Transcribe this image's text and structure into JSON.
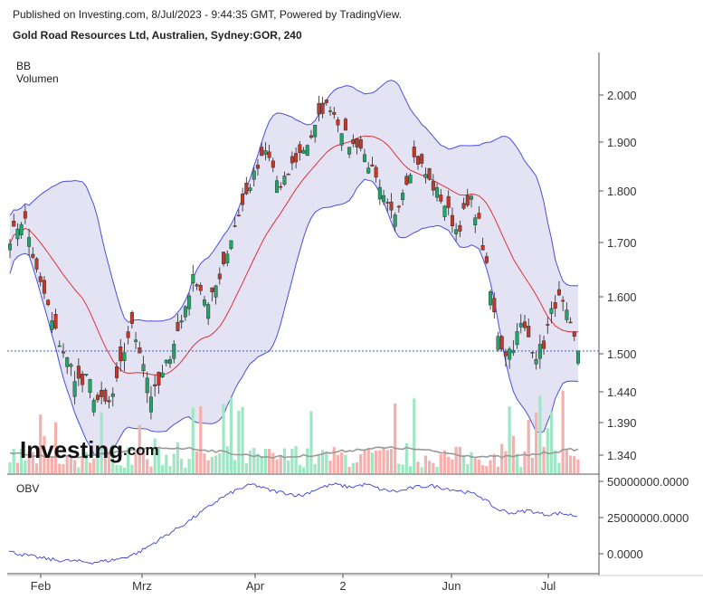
{
  "header": {
    "published": "Published on Investing.com, 8/Jul/2023 - 9:44:35 GMT, Powered by TradingView.",
    "instrument": "Gold Road Resources Ltd, Australien, Sydney:GOR, 240"
  },
  "indicators": {
    "bb": "BB",
    "volume": "Volumen",
    "obv": "OBV"
  },
  "logo": {
    "main": "Investing",
    "suffix": ".com"
  },
  "colors": {
    "up": "#26a269",
    "down": "#c0392b",
    "band": "#4a4ee0",
    "band_fill": "#e3e3f4",
    "mid": "#e0303a",
    "vol_up": "#9ee6c4",
    "vol_down": "#f5b0ad",
    "obv": "#3a3fd8",
    "vol_ma": "#999999",
    "last_line": "#3a5fd8"
  },
  "chart_data": {
    "type": "candlestick",
    "x_labels": [
      "Feb",
      "Mrz",
      "Apr",
      "2",
      "Jun",
      "Jul"
    ],
    "y_ticks": [
      "2.000",
      "1.900",
      "1.800",
      "1.700",
      "1.600",
      "1.500",
      "1.440",
      "1.390",
      "1.340"
    ],
    "y_tick_values": [
      2.0,
      1.9,
      1.8,
      1.7,
      1.6,
      1.5,
      1.44,
      1.39,
      1.34
    ],
    "obv_ticks": [
      "50000000.0000",
      "25000000.0000",
      "0.0000"
    ],
    "obv_tick_values": [
      50000000,
      25000000,
      0
    ],
    "last_price": 1.505,
    "close_path": [
      1.71,
      1.73,
      1.75,
      1.69,
      1.63,
      1.6,
      1.55,
      1.52,
      1.49,
      1.47,
      1.45,
      1.46,
      1.43,
      1.42,
      1.42,
      1.45,
      1.5,
      1.55,
      1.52,
      1.48,
      1.43,
      1.45,
      1.48,
      1.52,
      1.55,
      1.6,
      1.64,
      1.61,
      1.58,
      1.62,
      1.66,
      1.7,
      1.75,
      1.78,
      1.82,
      1.85,
      1.88,
      1.85,
      1.8,
      1.83,
      1.86,
      1.88,
      1.9,
      1.93,
      1.97,
      1.98,
      1.95,
      1.92,
      1.89,
      1.9,
      1.87,
      1.84,
      1.8,
      1.77,
      1.75,
      1.79,
      1.83,
      1.87,
      1.85,
      1.82,
      1.8,
      1.78,
      1.75,
      1.72,
      1.76,
      1.78,
      1.74,
      1.66,
      1.58,
      1.52,
      1.5,
      1.52,
      1.55,
      1.53,
      1.5,
      1.51,
      1.56,
      1.6,
      1.58,
      1.54,
      1.505
    ],
    "obv_path": [
      1500000,
      -1000000,
      -3000000,
      -4500000,
      -5000000,
      -6000000,
      -5000000,
      -3000000,
      1000000,
      8000000,
      15000000,
      22000000,
      30000000,
      38000000,
      44000000,
      48000000,
      44000000,
      42000000,
      40000000,
      45000000,
      48000000,
      46000000,
      48000000,
      44000000,
      43000000,
      46000000,
      47000000,
      45000000,
      43000000,
      40000000,
      31000000,
      28000000,
      30000000,
      27000000,
      28000000,
      26000000
    ]
  }
}
